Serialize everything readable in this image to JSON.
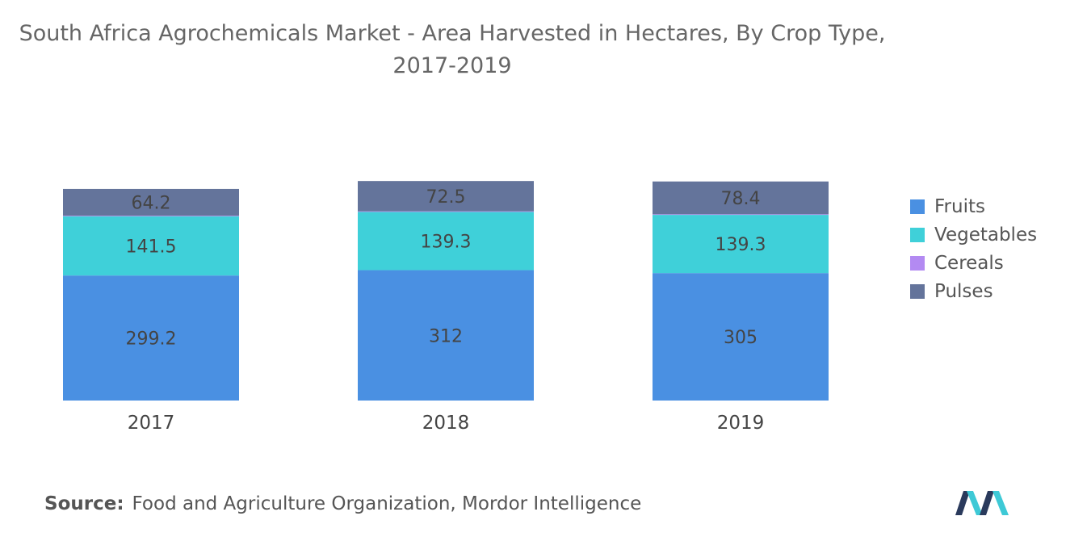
{
  "title": "South Africa Agrochemicals Market - Area Harvested in Hectares, By Crop Type, 2017-2019",
  "source": {
    "label": "Source:",
    "text": "Food and Agriculture Organization, Mordor Intelligence"
  },
  "logo": {
    "icon": "mordor-intelligence-logo",
    "colors": [
      "#2a3a5c",
      "#3ec9d6"
    ]
  },
  "chart_data": {
    "type": "bar",
    "stacked": true,
    "title": "South Africa Agrochemicals Market - Area Harvested in Hectares, By Crop Type, 2017-2019",
    "categories": [
      "2017",
      "2018",
      "2019"
    ],
    "series": [
      {
        "name": "Fruits",
        "values": [
          299.2,
          312,
          305
        ],
        "labels": [
          "299.2",
          "312",
          "305"
        ],
        "color": "#4a90e2"
      },
      {
        "name": "Vegetables",
        "values": [
          141.5,
          139.3,
          139.3
        ],
        "labels": [
          "141.5",
          "139.3",
          "139.3"
        ],
        "color": "#3fd0d9"
      },
      {
        "name": "Cereals",
        "values": [
          1.5,
          1.5,
          1.5
        ],
        "labels": [
          "",
          "",
          ""
        ],
        "color": "#b38af2"
      },
      {
        "name": "Pulses",
        "values": [
          64.2,
          72.5,
          78.4
        ],
        "labels": [
          "64.2",
          "72.5",
          "78.4"
        ],
        "color": "#64749b"
      }
    ],
    "axis_visible": false,
    "grid": false,
    "legend_position": "right"
  }
}
